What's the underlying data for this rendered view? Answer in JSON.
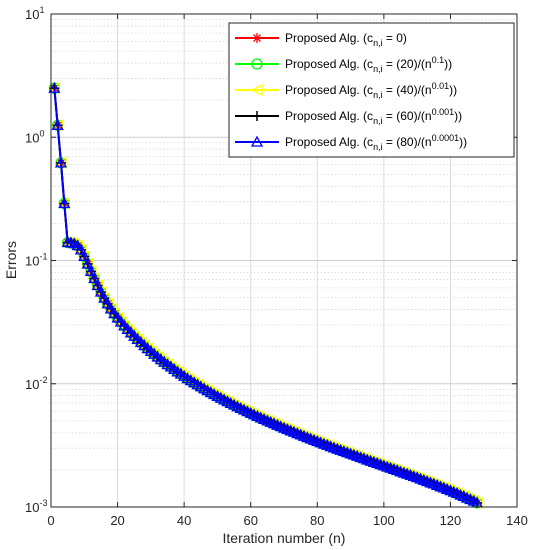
{
  "chart_data": {
    "type": "line",
    "title": "",
    "xlabel": "Iteration number (n)",
    "ylabel": "Errors",
    "xlim": [
      0,
      140
    ],
    "ylim": [
      0.001,
      10
    ],
    "yscale": "log",
    "grid": true,
    "legend_position": "top-right",
    "x_ticks": [
      "0",
      "20",
      "40",
      "60",
      "80",
      "100",
      "120",
      "140"
    ],
    "y_ticks": [
      {
        "base": "10",
        "exp": "-3"
      },
      {
        "base": "10",
        "exp": "-2"
      },
      {
        "base": "10",
        "exp": "-1"
      },
      {
        "base": "10",
        "exp": "0"
      },
      {
        "base": "10",
        "exp": "1"
      }
    ],
    "legend": [
      {
        "prefix": "Proposed Alg. (c",
        "sub": "n,i",
        "mid": " = 0)",
        "sup": "",
        "suffix": "",
        "color": "#ff0000",
        "marker": "star"
      },
      {
        "prefix": "Proposed  Alg. (c",
        "sub": "n,i",
        "mid": " = (20)/(n",
        "sup": "0.1",
        "suffix": "))",
        "color": "#00ff00",
        "marker": "circle"
      },
      {
        "prefix": "Proposed  Alg. (c",
        "sub": "n,i",
        "mid": " = (40)/(n",
        "sup": "0.01",
        "suffix": "))",
        "color": "#ffff00",
        "marker": "triangle-left"
      },
      {
        "prefix": "Proposed  Alg. (c",
        "sub": "n,i",
        "mid": " = (60)/(n",
        "sup": "0.001",
        "suffix": "))",
        "color": "#000000",
        "marker": "plus"
      },
      {
        "prefix": "Proposed  Alg. (c",
        "sub": "n,i",
        "mid": " = (80)/(n",
        "sup": "0.0001",
        "suffix": "))",
        "color": "#0000ff",
        "marker": "triangle-up"
      }
    ],
    "x": [
      1,
      2,
      3,
      4,
      5,
      6,
      7,
      8,
      9,
      10,
      11,
      12,
      13,
      14,
      15,
      16,
      17,
      18,
      19,
      20,
      21,
      22,
      23,
      24,
      25,
      26,
      27,
      28,
      29,
      30,
      31,
      32,
      33,
      34,
      35,
      36,
      37,
      38,
      39,
      40,
      41,
      42,
      43,
      44,
      45,
      46,
      47,
      48,
      49,
      50,
      51,
      52,
      53,
      54,
      55,
      56,
      57,
      58,
      59,
      60,
      61,
      62,
      63,
      64,
      65,
      66,
      67,
      68,
      69,
      70,
      71,
      72,
      73,
      74,
      75,
      76,
      77,
      78,
      79,
      80,
      81,
      82,
      83,
      84,
      85,
      86,
      87,
      88,
      89,
      90,
      91,
      92,
      93,
      94,
      95,
      96,
      97,
      98,
      99,
      100,
      101,
      102,
      103,
      104,
      105,
      106,
      107,
      108,
      109,
      110,
      111,
      112,
      113,
      114,
      115,
      116,
      117,
      118,
      119,
      120,
      121,
      122,
      123,
      124,
      125,
      126,
      127,
      128
    ],
    "series": [
      {
        "name": "Proposed Alg. (cn,i = 0)",
        "color": "#ff0000",
        "marker": "star",
        "values": [
          2.5,
          1.25,
          0.62,
          0.29,
          0.14,
          0.139,
          0.137,
          0.132,
          0.122,
          0.108,
          0.0938,
          0.0817,
          0.0714,
          0.0627,
          0.0555,
          0.0495,
          0.0446,
          0.0405,
          0.0371,
          0.0342,
          0.0317,
          0.0295,
          0.0276,
          0.0259,
          0.0243,
          0.0229,
          0.0216,
          0.0204,
          0.0193,
          0.0183,
          0.0174,
          0.0165,
          0.0157,
          0.015,
          0.0143,
          0.0137,
          0.0131,
          0.0125,
          0.012,
          0.0115,
          0.011,
          0.0106,
          0.0102,
          0.00982,
          0.00946,
          0.00911,
          0.00879,
          0.00848,
          0.00819,
          0.00791,
          0.00765,
          0.0074,
          0.00716,
          0.00693,
          0.00672,
          0.00651,
          0.00631,
          0.00612,
          0.00594,
          0.00577,
          0.0056,
          0.00544,
          0.00529,
          0.00514,
          0.005,
          0.00487,
          0.00474,
          0.00461,
          0.00449,
          0.00437,
          0.00426,
          0.00415,
          0.00405,
          0.00394,
          0.00385,
          0.00375,
          0.00366,
          0.00357,
          0.00348,
          0.0034,
          0.00332,
          0.00324,
          0.00317,
          0.00309,
          0.00302,
          0.00295,
          0.00289,
          0.00282,
          0.00276,
          0.0027,
          0.00264,
          0.00258,
          0.00252,
          0.00247,
          0.00241,
          0.00236,
          0.00231,
          0.00226,
          0.00221,
          0.00216,
          0.00211,
          0.00207,
          0.00202,
          0.00198,
          0.00193,
          0.00189,
          0.00185,
          0.00181,
          0.00177,
          0.00173,
          0.00169,
          0.00165,
          0.00161,
          0.00157,
          0.00154,
          0.0015,
          0.00146,
          0.00143,
          0.00139,
          0.00136,
          0.00132,
          0.00129,
          0.00125,
          0.00122,
          0.00118,
          0.00115,
          0.00112,
          0.00108
        ]
      },
      {
        "name": "Proposed Alg. (cn,i = (20)/(n0.1))",
        "color": "#00ff00",
        "marker": "circle",
        "values": [
          2.5,
          1.25,
          0.62,
          0.29,
          0.14,
          0.139,
          0.137,
          0.132,
          0.122,
          0.108,
          0.0938,
          0.0817,
          0.0714,
          0.0627,
          0.0555,
          0.0495,
          0.0446,
          0.0405,
          0.0371,
          0.0342,
          0.0317,
          0.0295,
          0.0276,
          0.0259,
          0.0243,
          0.0229,
          0.0216,
          0.0204,
          0.0193,
          0.0183,
          0.0174,
          0.0165,
          0.0157,
          0.015,
          0.0143,
          0.0137,
          0.0131,
          0.0125,
          0.012,
          0.0115,
          0.011,
          0.0106,
          0.0102,
          0.00982,
          0.00946,
          0.00911,
          0.00879,
          0.00848,
          0.00819,
          0.00791,
          0.00765,
          0.0074,
          0.00716,
          0.00693,
          0.00672,
          0.00651,
          0.00631,
          0.00612,
          0.00594,
          0.00577,
          0.0056,
          0.00544,
          0.00529,
          0.00514,
          0.005,
          0.00487,
          0.00474,
          0.00461,
          0.00449,
          0.00437,
          0.00426,
          0.00415,
          0.00405,
          0.00394,
          0.00385,
          0.00375,
          0.00366,
          0.00357,
          0.00348,
          0.0034,
          0.00332,
          0.00324,
          0.00317,
          0.00309,
          0.00302,
          0.00295,
          0.00289,
          0.00282,
          0.00276,
          0.0027,
          0.00264,
          0.00258,
          0.00252,
          0.00247,
          0.00241,
          0.00236,
          0.00231,
          0.00226,
          0.00221,
          0.00216,
          0.00211,
          0.00207,
          0.00202,
          0.00198,
          0.00193,
          0.00189,
          0.00185,
          0.00181,
          0.00177,
          0.00173,
          0.00169,
          0.00165,
          0.00161,
          0.00157,
          0.00154,
          0.0015,
          0.00146,
          0.00143,
          0.00139,
          0.00136,
          0.00132,
          0.00129,
          0.00125,
          0.00122,
          0.00118,
          0.00115,
          0.00112,
          0.00108
        ]
      },
      {
        "name": "Proposed Alg. (cn,i = (40)/(n0.01))",
        "color": "#ffff00",
        "marker": "triangle-left",
        "values": [
          2.5,
          1.25,
          0.62,
          0.29,
          0.14,
          0.139,
          0.137,
          0.132,
          0.122,
          0.108,
          0.0938,
          0.0817,
          0.0714,
          0.0627,
          0.0555,
          0.0495,
          0.0446,
          0.0405,
          0.0371,
          0.0342,
          0.0317,
          0.0295,
          0.0276,
          0.0259,
          0.0243,
          0.0229,
          0.0216,
          0.0204,
          0.0193,
          0.0183,
          0.0174,
          0.0165,
          0.0157,
          0.015,
          0.0143,
          0.0137,
          0.0131,
          0.0125,
          0.012,
          0.0115,
          0.011,
          0.0106,
          0.0102,
          0.00982,
          0.00946,
          0.00911,
          0.00879,
          0.00848,
          0.00819,
          0.00791,
          0.00765,
          0.0074,
          0.00716,
          0.00693,
          0.00672,
          0.00651,
          0.00631,
          0.00612,
          0.00594,
          0.00577,
          0.0056,
          0.00544,
          0.00529,
          0.00514,
          0.005,
          0.00487,
          0.00474,
          0.00461,
          0.00449,
          0.00437,
          0.00426,
          0.00415,
          0.00405,
          0.00394,
          0.00385,
          0.00375,
          0.00366,
          0.00357,
          0.00348,
          0.0034,
          0.00332,
          0.00324,
          0.00317,
          0.00309,
          0.00302,
          0.00295,
          0.00289,
          0.00282,
          0.00276,
          0.0027,
          0.00264,
          0.00258,
          0.00252,
          0.00247,
          0.00241,
          0.00236,
          0.00231,
          0.00226,
          0.00221,
          0.00216,
          0.00211,
          0.00207,
          0.00202,
          0.00198,
          0.00193,
          0.00189,
          0.00185,
          0.00181,
          0.00177,
          0.00173,
          0.00169,
          0.00165,
          0.00161,
          0.00157,
          0.00154,
          0.0015,
          0.00146,
          0.00143,
          0.00139,
          0.00136,
          0.00132,
          0.00129,
          0.00125,
          0.00122,
          0.00118,
          0.00115,
          0.00112,
          0.00108
        ]
      },
      {
        "name": "Proposed Alg. (cn,i = (60)/(n0.001))",
        "color": "#000000",
        "marker": "plus",
        "values": [
          2.5,
          1.25,
          0.62,
          0.29,
          0.14,
          0.139,
          0.137,
          0.132,
          0.122,
          0.108,
          0.0938,
          0.0817,
          0.0714,
          0.0627,
          0.0555,
          0.0495,
          0.0446,
          0.0405,
          0.0371,
          0.0342,
          0.0317,
          0.0295,
          0.0276,
          0.0259,
          0.0243,
          0.0229,
          0.0216,
          0.0204,
          0.0193,
          0.0183,
          0.0174,
          0.0165,
          0.0157,
          0.015,
          0.0143,
          0.0137,
          0.0131,
          0.0125,
          0.012,
          0.0115,
          0.011,
          0.0106,
          0.0102,
          0.00982,
          0.00946,
          0.00911,
          0.00879,
          0.00848,
          0.00819,
          0.00791,
          0.00765,
          0.0074,
          0.00716,
          0.00693,
          0.00672,
          0.00651,
          0.00631,
          0.00612,
          0.00594,
          0.00577,
          0.0056,
          0.00544,
          0.00529,
          0.00514,
          0.005,
          0.00487,
          0.00474,
          0.00461,
          0.00449,
          0.00437,
          0.00426,
          0.00415,
          0.00405,
          0.00394,
          0.00385,
          0.00375,
          0.00366,
          0.00357,
          0.00348,
          0.0034,
          0.00332,
          0.00324,
          0.00317,
          0.00309,
          0.00302,
          0.00295,
          0.00289,
          0.00282,
          0.00276,
          0.0027,
          0.00264,
          0.00258,
          0.00252,
          0.00247,
          0.00241,
          0.00236,
          0.00231,
          0.00226,
          0.00221,
          0.00216,
          0.00211,
          0.00207,
          0.00202,
          0.00198,
          0.00193,
          0.00189,
          0.00185,
          0.00181,
          0.00177,
          0.00173,
          0.00169,
          0.00165,
          0.00161,
          0.00157,
          0.00154,
          0.0015,
          0.00146,
          0.00143,
          0.00139,
          0.00136,
          0.00132,
          0.00129,
          0.00125,
          0.00122,
          0.00118,
          0.00115,
          0.00112,
          0.00108
        ]
      },
      {
        "name": "Proposed Alg. (cn,i = (80)/(n0.0001))",
        "color": "#0000ff",
        "marker": "triangle-up",
        "values": [
          2.5,
          1.25,
          0.62,
          0.29,
          0.14,
          0.139,
          0.137,
          0.132,
          0.122,
          0.108,
          0.0938,
          0.0817,
          0.0714,
          0.0627,
          0.0555,
          0.0495,
          0.0446,
          0.0405,
          0.0371,
          0.0342,
          0.0317,
          0.0295,
          0.0276,
          0.0259,
          0.0243,
          0.0229,
          0.0216,
          0.0204,
          0.0193,
          0.0183,
          0.0174,
          0.0165,
          0.0157,
          0.015,
          0.0143,
          0.0137,
          0.0131,
          0.0125,
          0.012,
          0.0115,
          0.011,
          0.0106,
          0.0102,
          0.00982,
          0.00946,
          0.00911,
          0.00879,
          0.00848,
          0.00819,
          0.00791,
          0.00765,
          0.0074,
          0.00716,
          0.00693,
          0.00672,
          0.00651,
          0.00631,
          0.00612,
          0.00594,
          0.00577,
          0.0056,
          0.00544,
          0.00529,
          0.00514,
          0.005,
          0.00487,
          0.00474,
          0.00461,
          0.00449,
          0.00437,
          0.00426,
          0.00415,
          0.00405,
          0.00394,
          0.00385,
          0.00375,
          0.00366,
          0.00357,
          0.00348,
          0.0034,
          0.00332,
          0.00324,
          0.00317,
          0.00309,
          0.00302,
          0.00295,
          0.00289,
          0.00282,
          0.00276,
          0.0027,
          0.00264,
          0.00258,
          0.00252,
          0.00247,
          0.00241,
          0.00236,
          0.00231,
          0.00226,
          0.00221,
          0.00216,
          0.00211,
          0.00207,
          0.00202,
          0.00198,
          0.00193,
          0.00189,
          0.00185,
          0.00181,
          0.00177,
          0.00173,
          0.00169,
          0.00165,
          0.00161,
          0.00157,
          0.00154,
          0.0015,
          0.00146,
          0.00143,
          0.00139,
          0.00136,
          0.00132,
          0.00129,
          0.00125,
          0.00122,
          0.00118,
          0.00115,
          0.00112,
          0.00108
        ]
      }
    ]
  }
}
